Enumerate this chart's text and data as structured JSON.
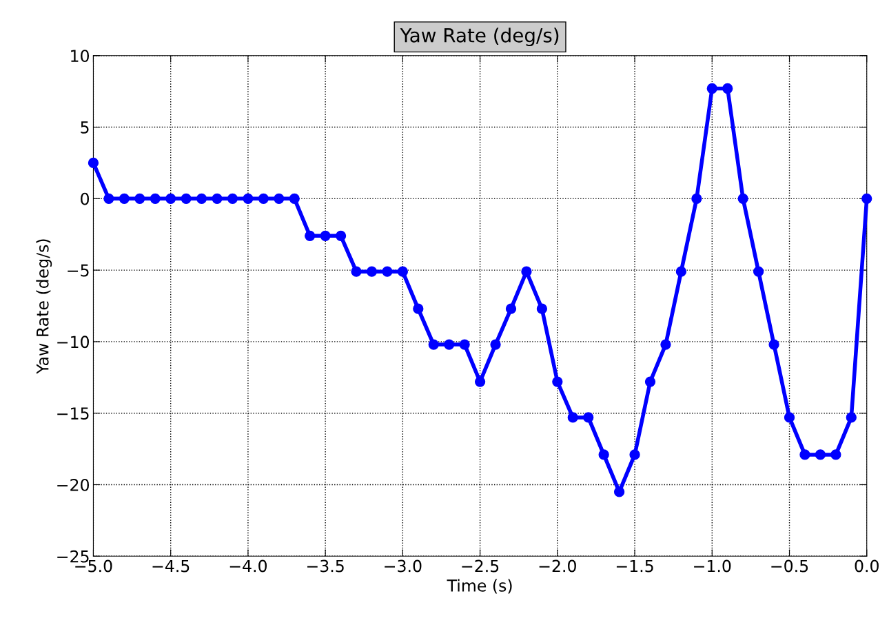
{
  "chart_data": {
    "type": "line",
    "title": "Yaw Rate (deg/s)",
    "xlabel": "Time (s)",
    "ylabel": "Yaw Rate (deg/s)",
    "x": [
      -5.0,
      -4.9,
      -4.8,
      -4.7,
      -4.6,
      -4.5,
      -4.4,
      -4.3,
      -4.2,
      -4.1,
      -4.0,
      -3.9,
      -3.8,
      -3.7,
      -3.6,
      -3.5,
      -3.4,
      -3.3,
      -3.2,
      -3.1,
      -3.0,
      -2.9,
      -2.8,
      -2.7,
      -2.6,
      -2.5,
      -2.4,
      -2.3,
      -2.2,
      -2.1,
      -2.0,
      -1.9,
      -1.8,
      -1.7,
      -1.6,
      -1.5,
      -1.4,
      -1.3,
      -1.2,
      -1.1,
      -1.0,
      -0.9,
      -0.8,
      -0.7,
      -0.6,
      -0.5,
      -0.4,
      -0.3,
      -0.2,
      -0.1,
      0.0
    ],
    "series": [
      {
        "color": "#0000ff",
        "values": [
          2.5,
          0,
          0,
          0,
          0,
          0,
          0,
          0,
          0,
          0,
          0,
          0,
          0,
          0,
          -2.6,
          -2.6,
          -2.6,
          -5.1,
          -5.1,
          -5.1,
          -5.1,
          -7.7,
          -10.2,
          -10.2,
          -10.2,
          -12.8,
          -10.2,
          -7.7,
          -5.1,
          -7.7,
          -12.8,
          -15.3,
          -15.3,
          -17.9,
          -20.5,
          -17.9,
          -12.8,
          -10.2,
          -5.1,
          0,
          7.7,
          7.7,
          0,
          -5.1,
          -10.2,
          -15.3,
          -17.9,
          -17.9,
          -17.9,
          -15.3,
          0
        ]
      }
    ],
    "xlim": [
      -5.0,
      0.0
    ],
    "ylim": [
      -25,
      10
    ],
    "xticks": [
      {
        "value": -5.0,
        "label": "−5.0"
      },
      {
        "value": -4.5,
        "label": "−4.5"
      },
      {
        "value": -4.0,
        "label": "−4.0"
      },
      {
        "value": -3.5,
        "label": "−3.5"
      },
      {
        "value": -3.0,
        "label": "−3.0"
      },
      {
        "value": -2.5,
        "label": "−2.5"
      },
      {
        "value": -2.0,
        "label": "−2.0"
      },
      {
        "value": -1.5,
        "label": "−1.5"
      },
      {
        "value": -1.0,
        "label": "−1.0"
      },
      {
        "value": -0.5,
        "label": "−0.5"
      },
      {
        "value": 0.0,
        "label": "0.0"
      }
    ],
    "yticks": [
      {
        "value": -25,
        "label": "−25"
      },
      {
        "value": -20,
        "label": "−20"
      },
      {
        "value": -15,
        "label": "−15"
      },
      {
        "value": -10,
        "label": "−10"
      },
      {
        "value": -5,
        "label": "−5"
      },
      0,
      5,
      10
    ],
    "grid": true,
    "marker": "circle",
    "line_style": "solid"
  }
}
